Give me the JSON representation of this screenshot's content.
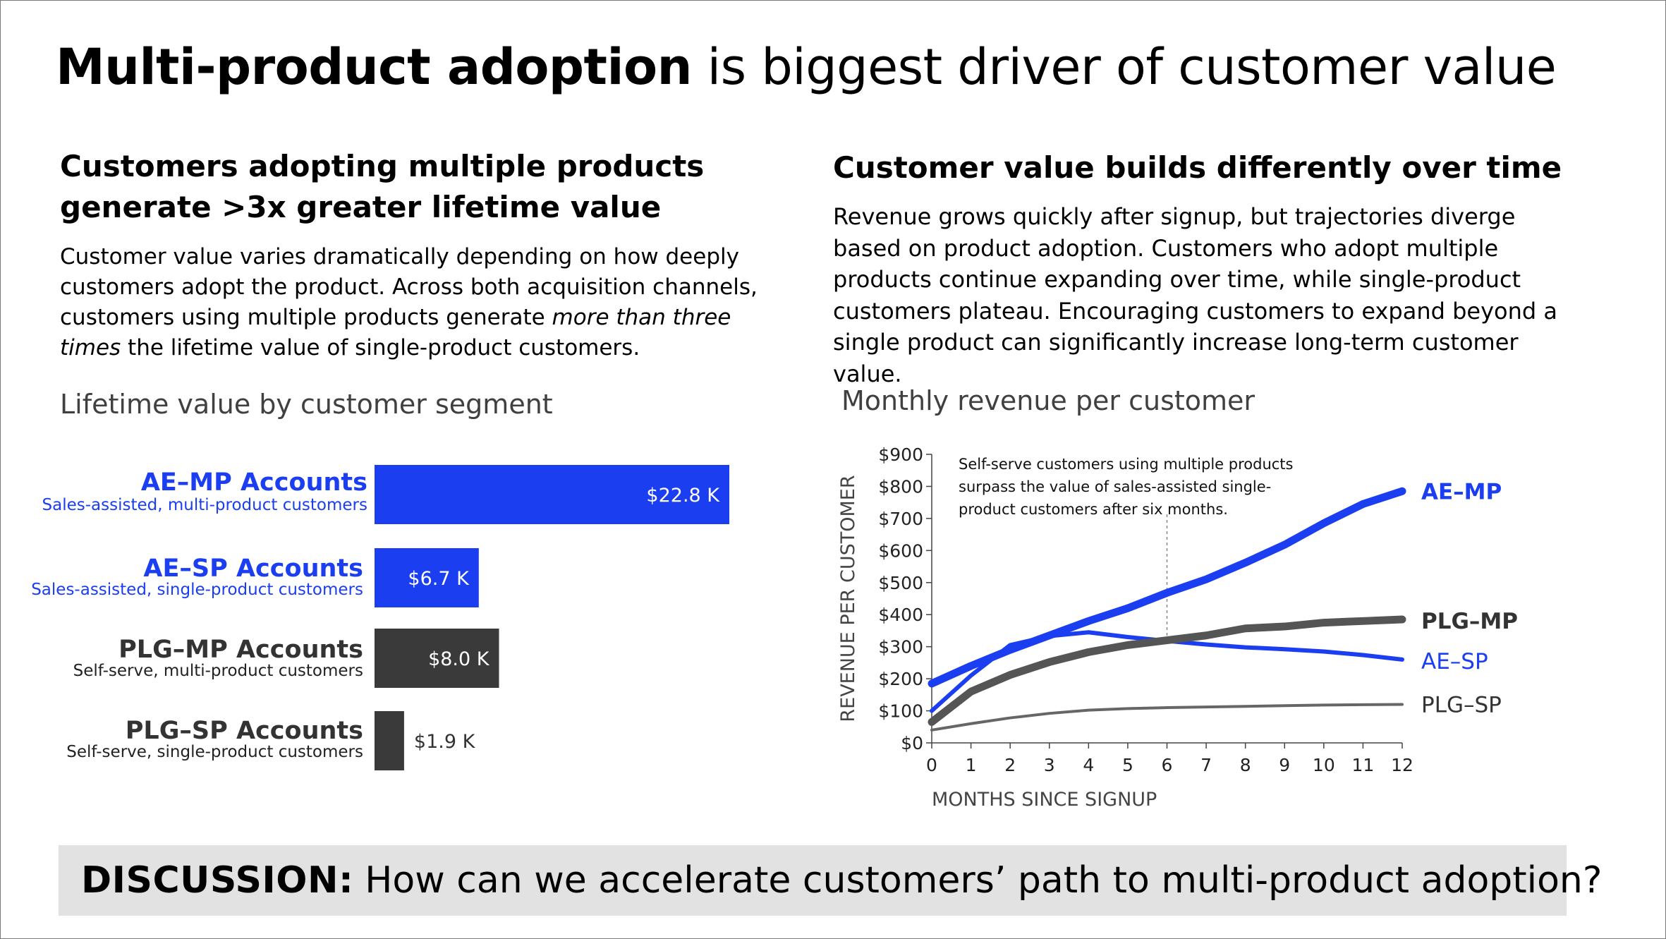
{
  "title": {
    "bold": "Multi-product adoption",
    "rest": " is biggest driver of customer value"
  },
  "left": {
    "heading": "Customers adopting multiple products generate >3x greater lifetime value",
    "body_pre": "Customer value varies dramatically depending on how deeply customers adopt the product.  Across both acquisition channels, customers using multiple products generate ",
    "body_em": "more than three times",
    "body_post": " the lifetime value of single-product customers."
  },
  "right": {
    "heading": "Customer value builds differently over time",
    "body": "Revenue grows quickly after signup, but trajectories diverge based on product adoption. Customers who adopt multiple products continue expanding over time, while single-product customers plateau.  Encouraging customers to expand beyond a single product can significantly increase long-term customer value."
  },
  "colors": {
    "blue": "#1a3ef0",
    "dark": "#3a3a3a",
    "gray": "#666666",
    "mid": "#555555"
  },
  "chart_data": [
    {
      "type": "bar",
      "orientation": "horizontal",
      "title": "Lifetime value by customer segment",
      "xlim": [
        0,
        22.8
      ],
      "bars": [
        {
          "label": "AE–MP Accounts",
          "sublabel": "Sales-assisted, multi-product customers",
          "value": 22.8,
          "value_label": "$22.8 K",
          "color": "blue",
          "value_inside": true
        },
        {
          "label": "AE–SP Accounts",
          "sublabel": "Sales-assisted, single-product customers",
          "value": 6.7,
          "value_label": "$6.7 K",
          "color": "blue",
          "value_inside": true
        },
        {
          "label": "PLG–MP Accounts",
          "sublabel": "Self-serve, multi-product customers",
          "value": 8.0,
          "value_label": "$8.0 K",
          "color": "dark",
          "value_inside": true
        },
        {
          "label": "PLG–SP Accounts",
          "sublabel": "Self-serve, single-product customers",
          "value": 1.9,
          "value_label": "$1.9 K",
          "color": "dark",
          "value_inside": false
        }
      ]
    },
    {
      "type": "line",
      "title": "Monthly revenue per customer",
      "xlabel": "MONTHS SINCE SIGNUP",
      "ylabel": "REVENUE PER CUSTOMER",
      "x": [
        0,
        1,
        2,
        3,
        4,
        5,
        6,
        7,
        8,
        9,
        10,
        11,
        12
      ],
      "xlim": [
        0,
        12
      ],
      "ylim": [
        0,
        900
      ],
      "yticks": [
        0,
        100,
        200,
        300,
        400,
        500,
        600,
        700,
        800,
        900
      ],
      "ytick_labels": [
        "$0",
        "$100",
        "$200",
        "$300",
        "$400",
        "$500",
        "$600",
        "$700",
        "$800",
        "$900"
      ],
      "annotation": {
        "x": 6,
        "lines": [
          "Self-serve customers using multiple products",
          "surpass the value of sales-assisted single-",
          "product customers after six months."
        ]
      },
      "series": [
        {
          "name": "AE–MP",
          "values": [
            185,
            240,
            290,
            335,
            380,
            420,
            468,
            510,
            562,
            618,
            685,
            745,
            785
          ],
          "color": "blue",
          "weight": "heavy",
          "bold_label": true
        },
        {
          "name": "AE–SP",
          "values": [
            100,
            210,
            305,
            333,
            345,
            330,
            318,
            307,
            298,
            292,
            285,
            274,
            260
          ],
          "color": "blue",
          "weight": "medium",
          "bold_label": false
        },
        {
          "name": "PLG–MP",
          "values": [
            65,
            160,
            212,
            252,
            283,
            305,
            320,
            335,
            357,
            363,
            375,
            380,
            385
          ],
          "color": "mid",
          "weight": "heavy",
          "bold_label": true
        },
        {
          "name": "PLG–SP",
          "values": [
            40,
            60,
            78,
            92,
            102,
            107,
            110,
            112,
            114,
            116,
            118,
            119,
            120
          ],
          "color": "gray",
          "weight": "light",
          "bold_label": false
        }
      ]
    }
  ],
  "discussion": {
    "label": "DISCUSSION:",
    "text": "How can we accelerate customers’ path to multi-product adoption?"
  }
}
